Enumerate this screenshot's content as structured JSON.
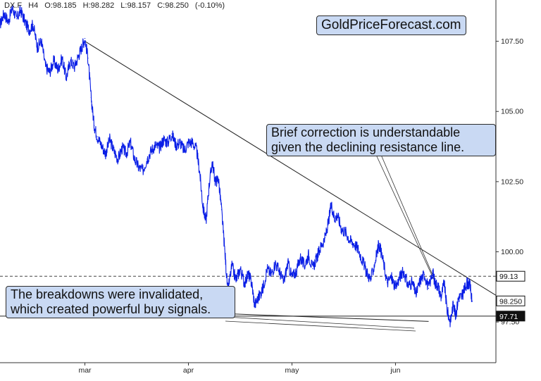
{
  "header": {
    "symbol": "DX.F",
    "timeframe": "H4",
    "open": "O:98.185",
    "high": "H:98.282",
    "low": "L:98.157",
    "close": "C:98.250",
    "change": "(-0.10%)"
  },
  "brand": "GoldPriceForecast.com",
  "annotations": {
    "resistance_note": [
      "Brief correction is understandable",
      "given the declining resistance line."
    ],
    "breakdown_note": [
      "The breakdowns were invalidated,",
      "which created powerful buy signals."
    ]
  },
  "colors": {
    "price": "#0a1ee6",
    "callout_bg": "#c9d9f3",
    "axis": "#333333",
    "label_dark": "#111111",
    "dashed_level": "#444444"
  },
  "chart_data": {
    "type": "line",
    "title": "",
    "xlabel": "",
    "ylabel": "",
    "x_ticks": [
      {
        "label": "mar",
        "x": 2.0
      },
      {
        "label": "apr",
        "x": 3.0
      },
      {
        "label": "may",
        "x": 4.0
      },
      {
        "label": "jun",
        "x": 5.0
      }
    ],
    "y_ticks": [
      "107.50",
      "105.00",
      "102.50",
      "100.00",
      "97.50"
    ],
    "ylim": [
      96.05,
      108.97
    ],
    "xlim": [
      1.18,
      5.97
    ],
    "grid": false,
    "series": [
      {
        "x": [
          1.18,
          1.22,
          1.26,
          1.3,
          1.34,
          1.38,
          1.42,
          1.46,
          1.5,
          1.54,
          1.58,
          1.62,
          1.66,
          1.7,
          1.74,
          1.78,
          1.82,
          1.86,
          1.9,
          1.94,
          1.97,
          2.0,
          2.03,
          2.06,
          2.09,
          2.12,
          2.16,
          2.2,
          2.24,
          2.28,
          2.32,
          2.36,
          2.4,
          2.44,
          2.48,
          2.52,
          2.56,
          2.6,
          2.64,
          2.68,
          2.72,
          2.76,
          2.8,
          2.84,
          2.88,
          2.92,
          2.96,
          3.0,
          3.04,
          3.08,
          3.11,
          3.14,
          3.17,
          3.2,
          3.23,
          3.26,
          3.29,
          3.32,
          3.35,
          3.38,
          3.42,
          3.46,
          3.5,
          3.54,
          3.58,
          3.61,
          3.64,
          3.68,
          3.72,
          3.76,
          3.8,
          3.84,
          3.88,
          3.92,
          3.96,
          4.0,
          4.04,
          4.08,
          4.12,
          4.16,
          4.2,
          4.24,
          4.28,
          4.32,
          4.35,
          4.38,
          4.41,
          4.44,
          4.48,
          4.52,
          4.56,
          4.6,
          4.64,
          4.68,
          4.72,
          4.76,
          4.8,
          4.84,
          4.88,
          4.92,
          4.96,
          5.0,
          5.04,
          5.08,
          5.12,
          5.16,
          5.2,
          5.24,
          5.28,
          5.32,
          5.36,
          5.38,
          5.41,
          5.44,
          5.47,
          5.5,
          5.53,
          5.56,
          5.58,
          5.61,
          5.64,
          5.66,
          5.69,
          5.72,
          5.74
        ],
        "values": [
          108.1,
          108.5,
          108.2,
          108.7,
          108.3,
          108.6,
          108.2,
          107.9,
          108.1,
          107.3,
          107.5,
          106.6,
          106.4,
          106.8,
          106.5,
          106.9,
          106.2,
          106.8,
          106.6,
          107.0,
          107.3,
          107.6,
          106.9,
          105.5,
          104.5,
          104.1,
          103.8,
          103.5,
          104.0,
          103.6,
          103.3,
          103.7,
          103.5,
          103.9,
          103.3,
          103.0,
          102.9,
          103.3,
          103.6,
          103.8,
          103.7,
          104.0,
          103.9,
          104.2,
          103.8,
          103.9,
          103.6,
          103.9,
          103.9,
          103.6,
          102.8,
          101.6,
          101.1,
          102.4,
          103.2,
          102.5,
          102.6,
          101.5,
          100.1,
          98.6,
          99.5,
          99.0,
          99.4,
          98.9,
          99.2,
          98.9,
          98.1,
          98.4,
          98.7,
          99.4,
          99.2,
          99.6,
          99.3,
          98.9,
          99.6,
          99.1,
          99.3,
          99.8,
          99.5,
          99.9,
          99.4,
          99.8,
          100.2,
          100.5,
          101.0,
          101.7,
          101.2,
          101.3,
          100.8,
          100.7,
          100.4,
          100.3,
          100.1,
          99.7,
          99.3,
          99.0,
          99.6,
          100.3,
          99.7,
          98.9,
          99.1,
          98.7,
          99.1,
          99.3,
          98.8,
          98.9,
          98.5,
          99.0,
          99.2,
          98.7,
          99.3,
          98.9,
          98.8,
          98.4,
          98.9,
          97.9,
          97.5,
          98.2,
          97.7,
          98.4,
          98.4,
          98.6,
          98.9,
          98.8,
          98.25
        ],
        "style": "high-frequency-line"
      }
    ],
    "resistance_line": {
      "from": {
        "x": 2.0,
        "y": 107.5
      },
      "to": {
        "x": 5.97,
        "y": 98.45
      }
    },
    "support_lines": [
      {
        "from": {
          "x": 1.18,
          "y": 97.71
        },
        "to": {
          "x": 5.97,
          "y": 97.71
        }
      },
      {
        "from": {
          "x": 3.34,
          "y": 97.8
        },
        "to": {
          "x": 5.32,
          "y": 97.52
        }
      }
    ],
    "dashed_level": 99.13,
    "price_labels": [
      {
        "label": "99.13",
        "value": 99.13,
        "style": "outline"
      },
      {
        "label": "98.250",
        "value": 98.25,
        "style": "outline"
      },
      {
        "label": "97.71",
        "value": 97.71,
        "style": "dark"
      }
    ]
  }
}
